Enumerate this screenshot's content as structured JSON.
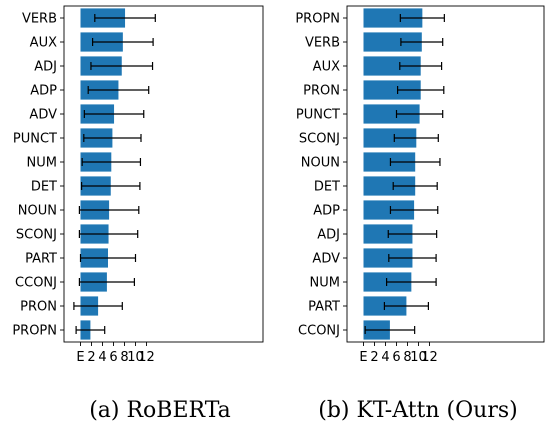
{
  "chart_data": [
    {
      "type": "bar",
      "orientation": "horizontal",
      "caption": "(a) RoBERTa",
      "categories": [
        "VERB",
        "AUX",
        "ADJ",
        "ADP",
        "ADV",
        "PUNCT",
        "NUM",
        "DET",
        "NOUN",
        "SCONJ",
        "PART",
        "CCONJ",
        "PRON",
        "PROPN"
      ],
      "values": [
        8.1,
        7.7,
        7.5,
        6.9,
        6.1,
        5.8,
        5.6,
        5.5,
        5.2,
        5.1,
        5.0,
        4.8,
        3.2,
        1.8
      ],
      "error": [
        5.5,
        5.5,
        5.6,
        5.5,
        5.4,
        5.2,
        5.3,
        5.3,
        5.4,
        5.3,
        5.0,
        5.0,
        4.4,
        2.6
      ],
      "xticklabels": [
        "E",
        "2",
        "4",
        "6",
        "8",
        "10",
        "12"
      ],
      "xticks": [
        0,
        2,
        4,
        6,
        8,
        10,
        12
      ],
      "grid": false,
      "color": "#1f77b4"
    },
    {
      "type": "bar",
      "orientation": "horizontal",
      "caption": "(b) KT-Attn (Ours)",
      "categories": [
        "PROPN",
        "VERB",
        "AUX",
        "PRON",
        "PUNCT",
        "SCONJ",
        "NOUN",
        "DET",
        "ADP",
        "ADJ",
        "ADV",
        "NUM",
        "PART",
        "CCONJ"
      ],
      "values": [
        10.7,
        10.6,
        10.4,
        10.4,
        10.2,
        9.6,
        9.4,
        9.4,
        9.2,
        8.9,
        8.9,
        8.7,
        7.8,
        4.8
      ],
      "error": [
        4.0,
        3.8,
        3.8,
        4.2,
        4.2,
        4.0,
        4.5,
        4.0,
        4.3,
        4.4,
        4.3,
        4.5,
        4.0,
        4.5
      ],
      "xticklabels": [
        "E",
        "2",
        "4",
        "6",
        "8",
        "10",
        "12"
      ],
      "xticks": [
        0,
        2,
        4,
        6,
        8,
        10,
        12
      ],
      "grid": false,
      "color": "#1f77b4"
    }
  ]
}
